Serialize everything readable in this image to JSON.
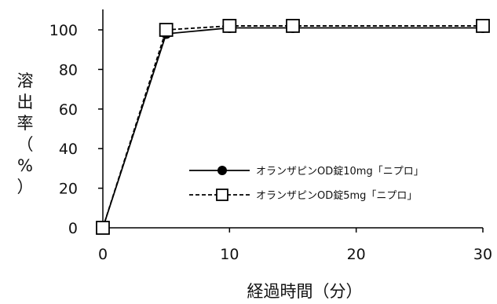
{
  "chart_data": {
    "type": "line",
    "xlabel": "経過時間（分）",
    "ylabel": "溶出率（%）",
    "xlim": [
      0,
      30
    ],
    "ylim": [
      0,
      110
    ],
    "x_ticks": [
      0,
      10,
      20,
      30
    ],
    "y_ticks": [
      0,
      20,
      40,
      60,
      80,
      100
    ],
    "x_tick_labels": [
      "0",
      "10",
      "20",
      "30"
    ],
    "y_tick_labels": [
      "0",
      "20",
      "40",
      "60",
      "80",
      "100"
    ],
    "grid": false,
    "legend_position": "right",
    "series": [
      {
        "name": "オランザピンOD錠10mg「ニプロ」",
        "x": [
          0,
          5,
          10,
          15,
          30
        ],
        "y": [
          0,
          98,
          101,
          101,
          101
        ],
        "line_style": "solid",
        "marker": "filled-circle",
        "color": "#000000"
      },
      {
        "name": "オランザピンOD錠5mg「ニプロ」",
        "x": [
          0,
          5,
          10,
          15,
          30
        ],
        "y": [
          0,
          100,
          102,
          102,
          102
        ],
        "line_style": "dashed",
        "marker": "open-square",
        "color": "#000000"
      }
    ]
  }
}
